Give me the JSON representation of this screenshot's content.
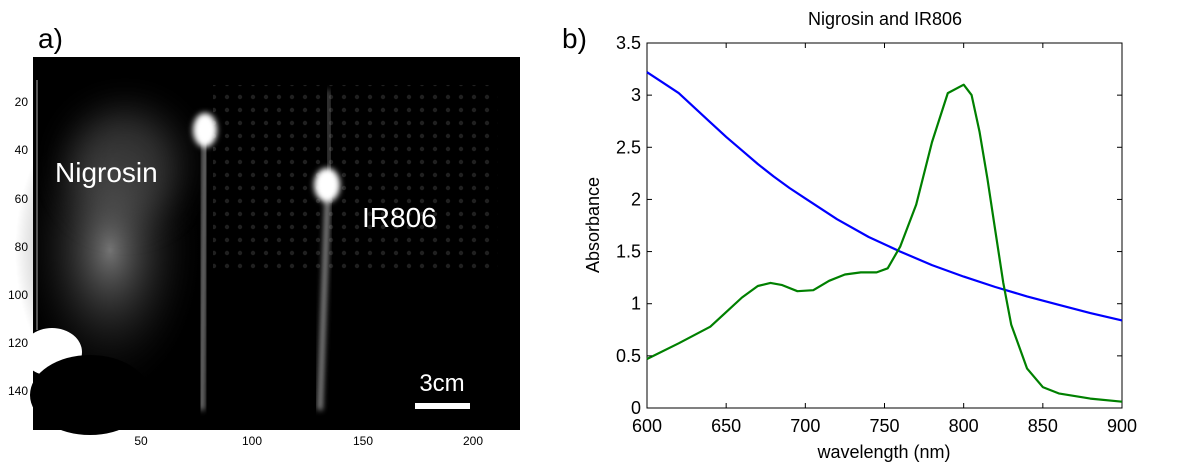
{
  "panels": {
    "a": {
      "label": "a)",
      "overlay_texts": {
        "nigrosin": "Nigrosin",
        "ir806": "IR806"
      },
      "scale_bar_label": "3cm",
      "x_ticks": [
        "50",
        "100",
        "150",
        "200"
      ],
      "y_ticks": [
        "20",
        "40",
        "60",
        "80",
        "100",
        "120",
        "140"
      ]
    },
    "b": {
      "label": "b)"
    }
  },
  "chart_data": {
    "type": "line",
    "title": "Nigrosin and IR806",
    "xlabel": "wavelength (nm)",
    "ylabel": "Absorbance",
    "xlim": [
      600,
      900
    ],
    "ylim": [
      0,
      3.5
    ],
    "x_ticks": [
      600,
      650,
      700,
      750,
      800,
      850,
      900
    ],
    "y_ticks": [
      0,
      0.5,
      1,
      1.5,
      2,
      2.5,
      3,
      3.5
    ],
    "series": [
      {
        "color": "#0000ff",
        "x": [
          600,
          610,
          620,
          630,
          640,
          650,
          660,
          670,
          680,
          690,
          700,
          720,
          740,
          760,
          780,
          800,
          820,
          840,
          860,
          880,
          900
        ],
        "y": [
          3.22,
          3.12,
          3.02,
          2.88,
          2.74,
          2.6,
          2.47,
          2.34,
          2.22,
          2.11,
          2.01,
          1.81,
          1.64,
          1.5,
          1.37,
          1.26,
          1.16,
          1.07,
          0.99,
          0.91,
          0.84
        ]
      },
      {
        "color": "#008000",
        "x": [
          600,
          620,
          640,
          650,
          660,
          670,
          678,
          685,
          695,
          705,
          715,
          725,
          735,
          745,
          752,
          760,
          770,
          780,
          790,
          800,
          805,
          810,
          815,
          820,
          825,
          830,
          840,
          850,
          860,
          880,
          900
        ],
        "y": [
          0.47,
          0.62,
          0.78,
          0.92,
          1.06,
          1.17,
          1.2,
          1.18,
          1.12,
          1.13,
          1.22,
          1.28,
          1.3,
          1.3,
          1.34,
          1.55,
          1.95,
          2.55,
          3.02,
          3.1,
          3.0,
          2.65,
          2.2,
          1.7,
          1.2,
          0.8,
          0.38,
          0.2,
          0.14,
          0.09,
          0.06
        ]
      }
    ]
  }
}
